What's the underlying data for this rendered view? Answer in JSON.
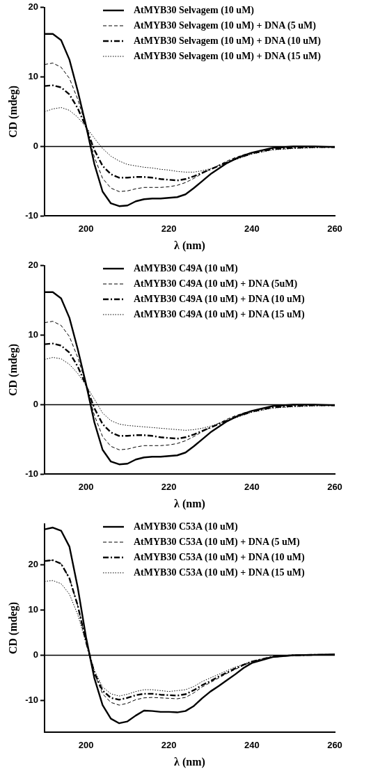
{
  "chart_data": [
    {
      "type": "line",
      "xlabel": "λ (nm)",
      "ylabel": "CD (mdeg)",
      "x": [
        190,
        192,
        194,
        196,
        198,
        200,
        202,
        204,
        206,
        208,
        210,
        212,
        214,
        216,
        218,
        220,
        222,
        224,
        226,
        228,
        230,
        232,
        234,
        236,
        238,
        240,
        245,
        250,
        255,
        260
      ],
      "xlim": [
        190,
        260
      ],
      "xticks": [
        200,
        220,
        240,
        260
      ],
      "ylim": [
        -10,
        20
      ],
      "yticks": [
        -10,
        0,
        10,
        20
      ],
      "legend": "top right",
      "marker": "none",
      "ref_lines": [
        {
          "axis": "y",
          "value": 0,
          "color": "#000000",
          "line_style": "solid"
        }
      ],
      "series": [
        {
          "name": "AtMYB30 Selvagem (10 uM)",
          "color": "#000000",
          "line_style": "solid",
          "values": [
            16.2,
            16.2,
            15.3,
            12.5,
            8,
            3,
            -2.5,
            -6.5,
            -8.2,
            -8.6,
            -8.5,
            -7.9,
            -7.6,
            -7.5,
            -7.5,
            -7.4,
            -7.3,
            -6.9,
            -6,
            -5,
            -4,
            -3.2,
            -2.4,
            -1.8,
            -1.3,
            -0.9,
            -0.2,
            0,
            0,
            -0.1
          ]
        },
        {
          "name": "AtMYB30 Selvagem (10 uM) + DNA (5 uM)",
          "color": "#000000",
          "line_style": "dashed",
          "values": [
            11.8,
            12,
            11.4,
            9.8,
            6.8,
            3,
            -1.5,
            -4.6,
            -6,
            -6.5,
            -6.4,
            -6.1,
            -5.9,
            -5.9,
            -5.9,
            -5.8,
            -5.6,
            -5.2,
            -4.6,
            -3.9,
            -3.3,
            -2.7,
            -2.1,
            -1.6,
            -1.2,
            -0.9,
            -0.3,
            -0.1,
            0,
            -0.1
          ]
        },
        {
          "name": "AtMYB30 Selvagem (10 uM) + DNA (10 uM)",
          "color": "#000000",
          "line_style": "dashdot",
          "values": [
            8.7,
            8.8,
            8.5,
            7.5,
            5.5,
            2.8,
            -0.5,
            -2.8,
            -4,
            -4.5,
            -4.5,
            -4.4,
            -4.4,
            -4.5,
            -4.7,
            -4.8,
            -4.9,
            -4.7,
            -4.3,
            -3.8,
            -3.3,
            -2.8,
            -2.3,
            -1.8,
            -1.4,
            -1,
            -0.4,
            -0.2,
            -0.1,
            -0.1
          ]
        },
        {
          "name": "AtMYB30 Selvagem (10 uM) + DNA (15 uM)",
          "color": "#000000",
          "line_style": "dotted",
          "values": [
            5,
            5.4,
            5.6,
            5.2,
            4.2,
            2.8,
            1.2,
            -0.3,
            -1.4,
            -2.1,
            -2.6,
            -2.8,
            -3,
            -3.1,
            -3.3,
            -3.4,
            -3.6,
            -3.7,
            -3.7,
            -3.5,
            -3.2,
            -2.8,
            -2.4,
            -1.9,
            -1.5,
            -1.1,
            -0.5,
            -0.3,
            -0.2,
            -0.1
          ]
        }
      ]
    },
    {
      "type": "line",
      "xlabel": "λ (nm)",
      "ylabel": "CD (mdeg)",
      "x": [
        190,
        192,
        194,
        196,
        198,
        200,
        202,
        204,
        206,
        208,
        210,
        212,
        214,
        216,
        218,
        220,
        222,
        224,
        226,
        228,
        230,
        232,
        234,
        236,
        238,
        240,
        245,
        250,
        255,
        260
      ],
      "xlim": [
        190,
        260
      ],
      "xticks": [
        200,
        220,
        240,
        260
      ],
      "ylim": [
        -10,
        20
      ],
      "yticks": [
        -10,
        0,
        10,
        20
      ],
      "legend": "top right",
      "marker": "none",
      "ref_lines": [
        {
          "axis": "y",
          "value": 0,
          "color": "#000000",
          "line_style": "solid"
        }
      ],
      "series": [
        {
          "name": "AtMYB30 C49A (10 uM)",
          "color": "#000000",
          "line_style": "solid",
          "values": [
            16.2,
            16.2,
            15.3,
            12.5,
            8,
            3,
            -2.5,
            -6.5,
            -8.2,
            -8.6,
            -8.5,
            -7.9,
            -7.6,
            -7.5,
            -7.5,
            -7.4,
            -7.3,
            -6.9,
            -6,
            -5,
            -4,
            -3.2,
            -2.4,
            -1.8,
            -1.3,
            -0.9,
            -0.2,
            0,
            0,
            -0.1
          ]
        },
        {
          "name": "AtMYB30 C49A (10 uM) + DNA (5uM)",
          "color": "#000000",
          "line_style": "dashed",
          "values": [
            11.8,
            12,
            11.4,
            9.8,
            6.8,
            3,
            -1.5,
            -4.6,
            -6,
            -6.5,
            -6.4,
            -6.1,
            -5.9,
            -5.9,
            -5.9,
            -5.8,
            -5.6,
            -5.2,
            -4.6,
            -3.9,
            -3.3,
            -2.7,
            -2.1,
            -1.6,
            -1.2,
            -0.9,
            -0.3,
            -0.1,
            0,
            -0.1
          ]
        },
        {
          "name": "AtMYB30 C49A (10 uM) + DNA (10 uM)",
          "color": "#000000",
          "line_style": "dashdot",
          "values": [
            8.7,
            8.8,
            8.5,
            7.5,
            5.5,
            2.8,
            -0.5,
            -2.8,
            -4,
            -4.5,
            -4.5,
            -4.4,
            -4.4,
            -4.5,
            -4.7,
            -4.8,
            -4.9,
            -4.7,
            -4.3,
            -3.8,
            -3.3,
            -2.8,
            -2.3,
            -1.8,
            -1.4,
            -1,
            -0.4,
            -0.2,
            -0.1,
            -0.1
          ]
        },
        {
          "name": "AtMYB30 C49A (10 uM) + DNA (15 uM)",
          "color": "#000000",
          "line_style": "dotted",
          "values": [
            6.5,
            6.8,
            6.6,
            5.8,
            4.5,
            2.8,
            0.8,
            -1.2,
            -2.3,
            -2.8,
            -3,
            -3.1,
            -3.2,
            -3.3,
            -3.4,
            -3.5,
            -3.6,
            -3.7,
            -3.6,
            -3.4,
            -3.1,
            -2.7,
            -2.3,
            -1.9,
            -1.5,
            -1.1,
            -0.5,
            -0.3,
            -0.2,
            -0.1
          ]
        }
      ]
    },
    {
      "type": "line",
      "xlabel": "λ (nm)",
      "ylabel": "CD (mdeg)",
      "x": [
        190,
        192,
        194,
        196,
        198,
        200,
        202,
        204,
        206,
        208,
        210,
        212,
        214,
        216,
        218,
        220,
        222,
        224,
        226,
        228,
        230,
        232,
        234,
        236,
        238,
        240,
        245,
        250,
        255,
        260
      ],
      "xlim": [
        190,
        260
      ],
      "xticks": [
        200,
        220,
        240,
        260
      ],
      "ylim": [
        -17,
        29
      ],
      "yticks": [
        -10,
        0,
        10,
        20
      ],
      "legend": "top right",
      "marker": "none",
      "ref_lines": [
        {
          "axis": "y",
          "value": 0,
          "color": "#000000",
          "line_style": "solid"
        }
      ],
      "series": [
        {
          "name": "AtMYB30 C53A (10 uM)",
          "color": "#000000",
          "line_style": "solid",
          "values": [
            27.8,
            28.2,
            27.5,
            24,
            15,
            4,
            -5,
            -11,
            -14,
            -15,
            -14.6,
            -13.3,
            -12.2,
            -12.3,
            -12.5,
            -12.5,
            -12.6,
            -12.3,
            -11.2,
            -9.5,
            -8,
            -6.8,
            -5.5,
            -4.2,
            -2.8,
            -1.7,
            -0.4,
            0,
            0.1,
            0.2
          ]
        },
        {
          "name": "AtMYB30 C53A (10 uM) + DNA (5 uM)",
          "color": "#000000",
          "line_style": "dashed",
          "values": [
            20.8,
            21,
            20.2,
            17,
            11,
            3,
            -4,
            -8.5,
            -10.4,
            -11,
            -10.6,
            -9.8,
            -9.4,
            -9.3,
            -9.4,
            -9.5,
            -9.6,
            -9.3,
            -8.3,
            -7,
            -6,
            -5,
            -4,
            -3.1,
            -2.2,
            -1.4,
            -0.3,
            0,
            0.1,
            0.1
          ]
        },
        {
          "name": "AtMYB30 C53A (10 uM) + DNA (10 uM)",
          "color": "#000000",
          "line_style": "dashdot",
          "values": [
            20.8,
            21,
            20.2,
            17,
            11,
            3,
            -3.8,
            -7.8,
            -9.4,
            -9.8,
            -9.4,
            -8.8,
            -8.5,
            -8.5,
            -8.7,
            -8.8,
            -8.9,
            -8.6,
            -7.7,
            -6.6,
            -5.7,
            -4.7,
            -3.8,
            -2.9,
            -2.1,
            -1.4,
            -0.3,
            0,
            0.1,
            0.1
          ]
        },
        {
          "name": "AtMYB30 C53A (10 uM) + DNA (15 uM)",
          "color": "#000000",
          "line_style": "dotted",
          "values": [
            16.3,
            16.5,
            15.8,
            13.5,
            9,
            2.8,
            -3.3,
            -7,
            -8.5,
            -9,
            -8.6,
            -8,
            -7.6,
            -7.6,
            -7.8,
            -8,
            -7.8,
            -7.6,
            -6.9,
            -5.8,
            -5,
            -4.2,
            -3.4,
            -2.6,
            -2,
            -1.3,
            -0.3,
            0,
            0.1,
            0.1
          ]
        }
      ]
    }
  ]
}
